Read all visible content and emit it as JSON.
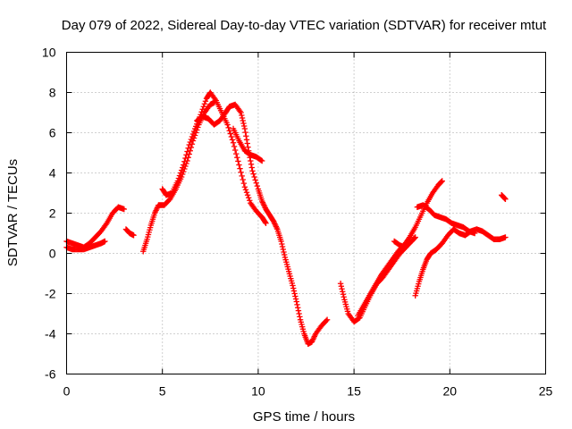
{
  "chart_data": {
    "type": "scatter",
    "title": "Day 079 of 2022, Sidereal Day-to-day VTEC variation (SDTVAR) for receiver mtut",
    "xlabel": "GPS time / hours",
    "ylabel": "SDTVAR / TECUs",
    "xlim": [
      0,
      25
    ],
    "ylim": [
      -6,
      10
    ],
    "xticks": [
      "0",
      "5",
      "10",
      "15",
      "20",
      "25"
    ],
    "yticks": [
      "-6",
      "-4",
      "-2",
      "0",
      "2",
      "4",
      "6",
      "8",
      "10"
    ],
    "grid": true,
    "marker": "plus",
    "series": [
      {
        "name": "SDTVAR",
        "color": "#ff0000",
        "segments": [
          [
            [
              0.0,
              0.6
            ],
            [
              0.3,
              0.5
            ],
            [
              0.6,
              0.4
            ],
            [
              0.9,
              0.3
            ],
            [
              1.2,
              0.5
            ],
            [
              1.5,
              0.8
            ],
            [
              1.8,
              1.1
            ],
            [
              2.1,
              1.5
            ],
            [
              2.4,
              2.0
            ],
            [
              2.7,
              2.3
            ],
            [
              3.0,
              2.2
            ]
          ],
          [
            [
              0.0,
              0.3
            ],
            [
              0.3,
              0.2
            ],
            [
              0.6,
              0.2
            ],
            [
              0.9,
              0.2
            ],
            [
              1.2,
              0.3
            ],
            [
              1.5,
              0.4
            ],
            [
              1.8,
              0.5
            ],
            [
              2.0,
              0.6
            ]
          ],
          [
            [
              3.1,
              1.2
            ],
            [
              3.3,
              1.0
            ],
            [
              3.5,
              0.9
            ]
          ],
          [
            [
              4.0,
              0.1
            ],
            [
              4.2,
              0.7
            ],
            [
              4.4,
              1.4
            ],
            [
              4.6,
              2.0
            ],
            [
              4.8,
              2.4
            ],
            [
              5.1,
              2.4
            ],
            [
              5.4,
              2.7
            ],
            [
              5.7,
              3.2
            ],
            [
              6.0,
              3.8
            ],
            [
              6.3,
              4.6
            ],
            [
              6.6,
              5.6
            ],
            [
              6.9,
              6.4
            ],
            [
              7.2,
              7.0
            ],
            [
              7.5,
              7.4
            ],
            [
              7.7,
              7.5
            ]
          ],
          [
            [
              5.0,
              3.2
            ],
            [
              5.2,
              2.9
            ],
            [
              5.5,
              3.0
            ],
            [
              5.8,
              3.6
            ],
            [
              6.1,
              4.4
            ],
            [
              6.4,
              5.4
            ],
            [
              6.7,
              6.2
            ],
            [
              7.0,
              6.9
            ],
            [
              7.3,
              7.7
            ],
            [
              7.5,
              8.0
            ],
            [
              7.8,
              7.6
            ],
            [
              8.1,
              7.0
            ],
            [
              8.4,
              6.4
            ],
            [
              8.7,
              5.5
            ],
            [
              9.0,
              4.4
            ],
            [
              9.3,
              3.3
            ],
            [
              9.6,
              2.5
            ],
            [
              9.9,
              2.1
            ],
            [
              10.2,
              1.8
            ],
            [
              10.4,
              1.5
            ]
          ],
          [
            [
              6.8,
              6.6
            ],
            [
              7.1,
              6.8
            ],
            [
              7.4,
              6.7
            ],
            [
              7.7,
              6.4
            ],
            [
              8.0,
              6.6
            ],
            [
              8.3,
              7.0
            ],
            [
              8.5,
              7.3
            ],
            [
              8.8,
              7.4
            ],
            [
              9.1,
              7.0
            ],
            [
              9.3,
              6.2
            ],
            [
              9.5,
              5.1
            ],
            [
              9.7,
              4.1
            ],
            [
              10.0,
              3.2
            ],
            [
              10.2,
              2.6
            ],
            [
              10.4,
              2.2
            ],
            [
              10.6,
              1.9
            ],
            [
              10.8,
              1.6
            ],
            [
              11.0,
              1.2
            ],
            [
              11.2,
              0.6
            ],
            [
              11.4,
              -0.2
            ],
            [
              11.6,
              -0.9
            ],
            [
              11.8,
              -1.6
            ],
            [
              12.0,
              -2.4
            ],
            [
              12.2,
              -3.3
            ],
            [
              12.4,
              -4.0
            ],
            [
              12.6,
              -4.5
            ],
            [
              12.8,
              -4.4
            ],
            [
              13.0,
              -4.0
            ],
            [
              13.3,
              -3.6
            ],
            [
              13.6,
              -3.3
            ]
          ],
          [
            [
              8.7,
              6.2
            ],
            [
              9.0,
              5.6
            ],
            [
              9.3,
              5.1
            ],
            [
              9.6,
              4.9
            ],
            [
              9.9,
              4.8
            ],
            [
              10.2,
              4.6
            ]
          ],
          [
            [
              14.3,
              -1.5
            ],
            [
              14.5,
              -2.3
            ],
            [
              14.7,
              -3.0
            ],
            [
              15.0,
              -3.4
            ],
            [
              15.3,
              -3.2
            ],
            [
              15.6,
              -2.6
            ],
            [
              15.9,
              -2.0
            ],
            [
              16.2,
              -1.5
            ],
            [
              16.5,
              -1.2
            ],
            [
              16.8,
              -0.8
            ],
            [
              17.1,
              -0.4
            ],
            [
              17.4,
              0.0
            ],
            [
              17.7,
              0.3
            ],
            [
              18.0,
              0.6
            ],
            [
              18.2,
              0.8
            ]
          ],
          [
            [
              15.2,
              -3.1
            ],
            [
              15.5,
              -2.6
            ],
            [
              15.8,
              -2.1
            ],
            [
              16.1,
              -1.6
            ],
            [
              16.4,
              -1.1
            ],
            [
              16.7,
              -0.7
            ],
            [
              17.0,
              -0.3
            ],
            [
              17.3,
              0.1
            ],
            [
              17.6,
              0.4
            ],
            [
              17.9,
              0.8
            ],
            [
              18.2,
              1.3
            ],
            [
              18.5,
              1.9
            ],
            [
              18.8,
              2.5
            ],
            [
              19.1,
              3.0
            ],
            [
              19.4,
              3.4
            ],
            [
              19.6,
              3.6
            ]
          ],
          [
            [
              17.1,
              0.6
            ],
            [
              17.4,
              0.4
            ],
            [
              17.7,
              0.3
            ]
          ],
          [
            [
              18.2,
              -2.1
            ],
            [
              18.4,
              -1.4
            ],
            [
              18.6,
              -0.8
            ],
            [
              18.8,
              -0.3
            ],
            [
              19.0,
              0.0
            ],
            [
              19.3,
              0.2
            ],
            [
              19.6,
              0.5
            ],
            [
              19.9,
              0.9
            ],
            [
              20.2,
              1.2
            ],
            [
              20.5,
              1.0
            ],
            [
              20.8,
              0.9
            ],
            [
              21.1,
              1.1
            ],
            [
              21.4,
              1.2
            ],
            [
              21.7,
              1.1
            ],
            [
              22.0,
              0.9
            ],
            [
              22.3,
              0.7
            ],
            [
              22.6,
              0.7
            ],
            [
              22.9,
              0.8
            ]
          ],
          [
            [
              18.3,
              2.3
            ],
            [
              18.6,
              2.4
            ],
            [
              18.9,
              2.2
            ],
            [
              19.2,
              1.9
            ],
            [
              19.5,
              1.8
            ],
            [
              19.8,
              1.7
            ],
            [
              20.1,
              1.5
            ],
            [
              20.4,
              1.4
            ],
            [
              20.7,
              1.3
            ],
            [
              21.0,
              1.1
            ],
            [
              21.3,
              1.0
            ]
          ],
          [
            [
              22.7,
              2.9
            ],
            [
              22.9,
              2.7
            ]
          ]
        ]
      }
    ]
  }
}
